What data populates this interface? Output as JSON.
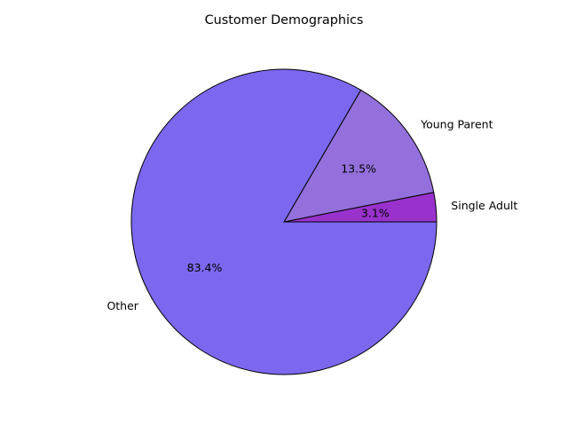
{
  "chart_data": {
    "type": "pie",
    "title": "Customer Demographics",
    "start_angle": 0,
    "direction": "counterclockwise",
    "slices": [
      {
        "label": "Single Adult",
        "value": 3.1,
        "pct_label": "3.1%",
        "color": "#9932CC"
      },
      {
        "label": "Young Parent",
        "value": 13.5,
        "pct_label": "13.5%",
        "color": "#9370DB"
      },
      {
        "label": "Other",
        "value": 83.4,
        "pct_label": "83.4%",
        "color": "#7B68EE"
      }
    ]
  }
}
